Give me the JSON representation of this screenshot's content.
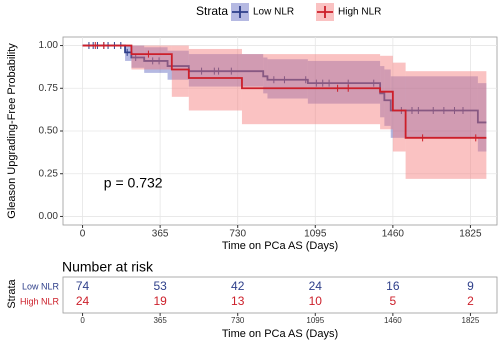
{
  "chart_data": {
    "type": "km",
    "legend_title": "Strata",
    "ylabel": "Gleason Upgrading-Free Probability",
    "xlabel": "Time on PCa AS (Days)",
    "annotation": "p =  0.732",
    "annotation_at": [
      100,
      0.19
    ],
    "xlim": [
      -92,
      1950
    ],
    "ylim": [
      -0.05,
      1.05
    ],
    "xticks": [
      0,
      365,
      730,
      1095,
      1460,
      1825
    ],
    "yticks": [
      {
        "value": 0,
        "label": "0.00"
      },
      {
        "value": 0.25,
        "label": "0.25"
      },
      {
        "value": 0.5,
        "label": "0.50"
      },
      {
        "value": 0.75,
        "label": "0.75"
      },
      {
        "value": 1,
        "label": "1.00"
      }
    ],
    "grid": true,
    "last_time": 1900,
    "series": [
      {
        "name": "Low NLR",
        "color": "#2e3f8a",
        "band_color": "rgba(90,100,190,0.45)",
        "x": [
          0,
          200,
          230,
          290,
          400,
          500,
          850,
          870,
          1060,
          1400,
          1420,
          1450,
          1860
        ],
        "values": [
          1,
          0.96,
          0.93,
          0.91,
          0.88,
          0.85,
          0.82,
          0.8,
          0.78,
          0.72,
          0.68,
          0.62,
          0.55
        ],
        "lower": [
          1,
          0.91,
          0.87,
          0.84,
          0.8,
          0.76,
          0.72,
          0.69,
          0.66,
          0.58,
          0.53,
          0.46,
          0.38
        ],
        "upper": [
          1,
          1,
          1,
          0.99,
          0.97,
          0.95,
          0.93,
          0.92,
          0.91,
          0.88,
          0.86,
          0.82,
          0.78
        ],
        "censored": [
          30,
          50,
          70,
          100,
          120,
          150,
          180,
          210,
          250,
          330,
          360,
          420,
          560,
          620,
          640,
          700,
          900,
          950,
          1050,
          1100,
          1130,
          1160,
          1250,
          1370,
          1500,
          1550,
          1580,
          1650,
          1700,
          1750,
          1790
        ],
        "at_risk": [
          74,
          53,
          42,
          24,
          16,
          9
        ]
      },
      {
        "name": "High NLR",
        "color": "#cc1f2a",
        "band_color": "rgba(245,120,120,0.45)",
        "x": [
          0,
          230,
          420,
          500,
          750,
          1400,
          1460,
          1520
        ],
        "values": [
          1,
          0.95,
          0.86,
          0.81,
          0.75,
          0.73,
          0.62,
          0.46
        ],
        "lower": [
          1,
          0.86,
          0.7,
          0.62,
          0.54,
          0.51,
          0.38,
          0.22
        ],
        "upper": [
          1,
          1,
          1,
          0.98,
          0.95,
          0.94,
          0.9,
          0.85
        ],
        "censored": [
          60,
          100,
          310,
          1200,
          1250,
          1600,
          1850
        ],
        "at_risk": [
          24,
          19,
          13,
          10,
          5,
          2
        ]
      }
    ],
    "risk_table": {
      "title": "Number at risk",
      "ylabel": "Strata",
      "xlabel": "Time on PCa AS (Days)"
    }
  }
}
